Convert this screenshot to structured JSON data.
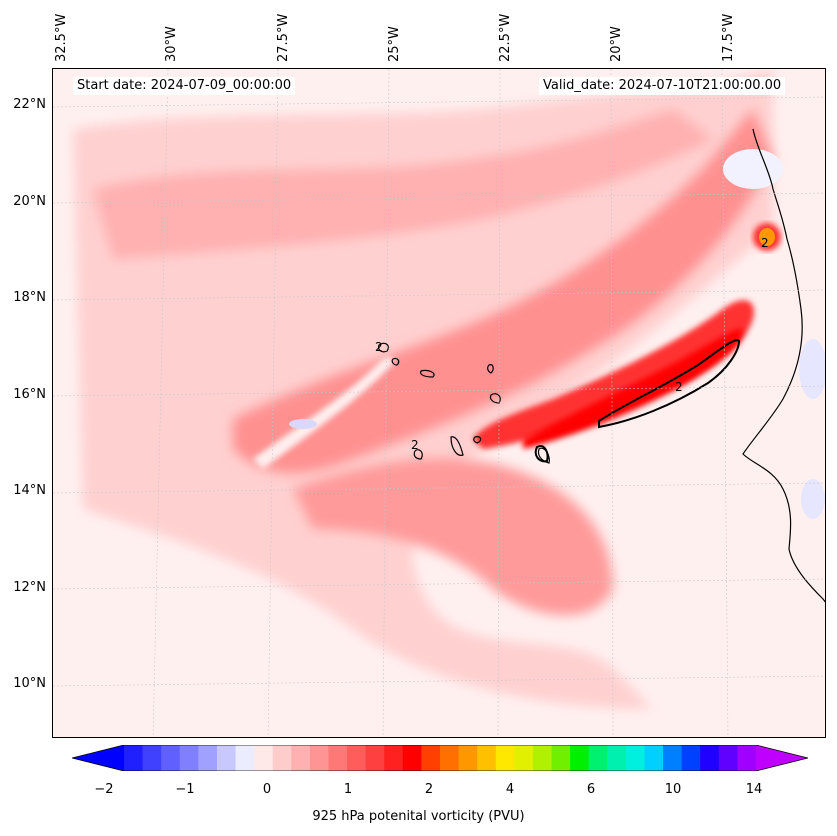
{
  "map": {
    "start_label": "Start date: 2024-07-09_00:00:00",
    "valid_label": "Valid_date: 2024-07-10T21:00:00.00",
    "lon_labels": [
      "32.5°W",
      "30°W",
      "27.5°W",
      "25°W",
      "22.5°W",
      "20°W",
      "17.5°W"
    ],
    "lat_labels": [
      "22°N",
      "20°N",
      "18°N",
      "16°N",
      "14°N",
      "12°N",
      "10°N"
    ],
    "contour_level_label": "2",
    "colors": {
      "background": "#fff0f0",
      "pv_low": "#ffd6d6",
      "pv_mid": "#ff8c8c",
      "pv_high": "#ff3030",
      "pv_peak": "#ff0000",
      "pv_negative": "#e6e6ff",
      "coast": "#000000"
    }
  },
  "colorbar": {
    "title": "925 hPa potenital vorticity (PVU)",
    "tick_labels": [
      "−2",
      "−1",
      "0",
      "1",
      "2",
      "4",
      "6",
      "10",
      "14"
    ],
    "colors": [
      "#0000ff",
      "#2020ff",
      "#4040ff",
      "#6060ff",
      "#8080ff",
      "#a0a0ff",
      "#c8c8ff",
      "#ececff",
      "#ffe8e8",
      "#ffcccc",
      "#ffb0b0",
      "#ff9494",
      "#ff7878",
      "#ff5c5c",
      "#ff4040",
      "#ff2020",
      "#ff0000",
      "#ff4000",
      "#ff7000",
      "#ff9800",
      "#ffc000",
      "#ffe800",
      "#e0f000",
      "#b0f000",
      "#70f000",
      "#00f000",
      "#00f070",
      "#00f0b0",
      "#00f0e0",
      "#00d0ff",
      "#0080ff",
      "#0040ff",
      "#2000ff",
      "#6000ff",
      "#a000ff",
      "#c000ff"
    ]
  }
}
